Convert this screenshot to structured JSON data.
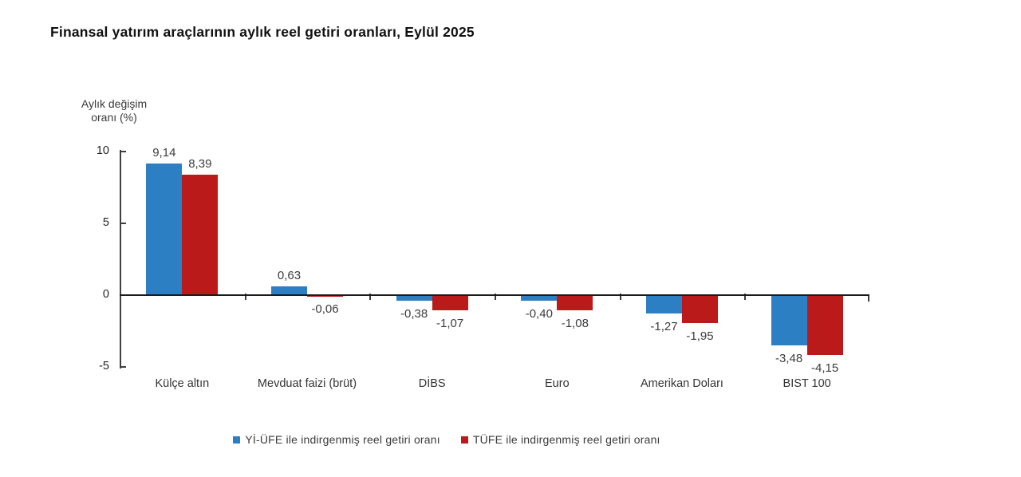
{
  "chart_data": {
    "type": "bar",
    "title": "Finansal yatırım araçlarının aylık reel getiri oranları, Eylül 2025",
    "ylabel": "Aylık değişim oranı (%)",
    "xlabel": "",
    "categories": [
      "Külçe altın",
      "Mevduat faizi (brüt)",
      "DİBS",
      "Euro",
      "Amerikan Doları",
      "BIST 100"
    ],
    "series": [
      {
        "name": "Yİ-ÜFE ile indirgenmiş reel getiri oranı",
        "color": "#2d7fc4",
        "values": [
          9.14,
          0.63,
          -0.38,
          -0.4,
          -1.27,
          -3.48
        ]
      },
      {
        "name": "TÜFE ile indirgenmiş reel getiri oranı",
        "color": "#ba1a1a",
        "values": [
          8.39,
          -0.06,
          -1.07,
          -1.08,
          -1.95,
          -4.15
        ]
      }
    ],
    "yticks": [
      10,
      5,
      0,
      -5
    ],
    "ylim": [
      -5,
      10
    ],
    "decimal_separator": ",",
    "grid": false,
    "legend_position": "bottom"
  }
}
